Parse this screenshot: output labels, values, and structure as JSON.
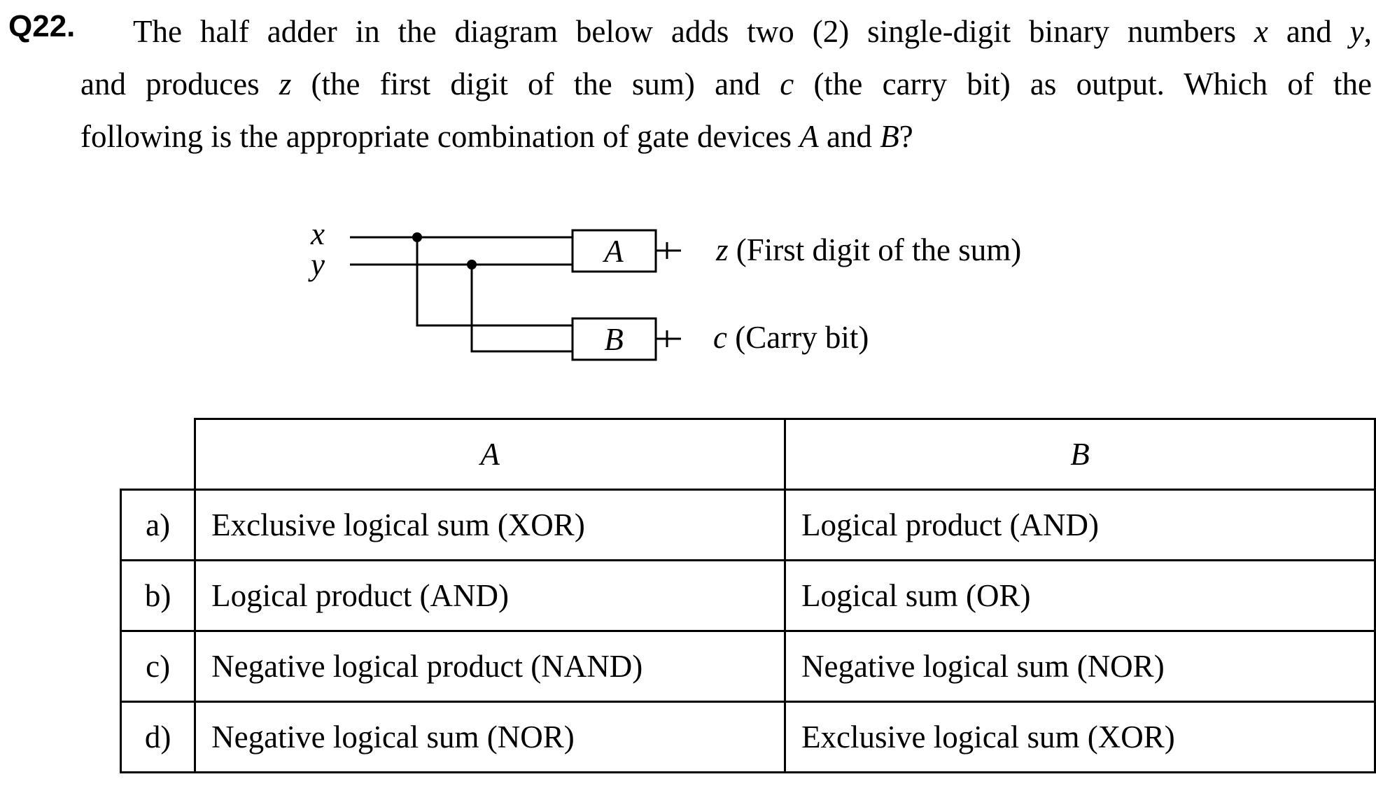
{
  "question": {
    "number": "Q22.",
    "line1": [
      "The half adder in the diagram below adds two (2) single-digit binary numbers ",
      "x",
      " and ",
      "y",
      ","
    ],
    "line2": [
      "and produces ",
      "z",
      " (the first digit of the sum) and ",
      "c",
      " (the carry bit) as output. Which of the"
    ],
    "line3": [
      "following is the appropriate combination of gate devices ",
      "A",
      " and ",
      "B",
      "?"
    ]
  },
  "diagram": {
    "input_x": "x",
    "input_y": "y",
    "gate_a": "A",
    "gate_b": "B",
    "output_z_var": "z",
    "output_z_text": " (First digit of the sum)",
    "output_c_var": "c",
    "output_c_text": " (Carry bit)"
  },
  "table": {
    "headers": {
      "a": "A",
      "b": "B"
    },
    "rows": [
      {
        "letter": "a)",
        "a": "Exclusive logical sum (XOR)",
        "b": "Logical product (AND)"
      },
      {
        "letter": "b)",
        "a": "Logical product (AND)",
        "b": "Logical sum (OR)"
      },
      {
        "letter": "c)",
        "a": "Negative logical product (NAND)",
        "b": "Negative logical sum (NOR)"
      },
      {
        "letter": "d)",
        "a": "Negative logical sum (NOR)",
        "b": "Exclusive logical sum (XOR)"
      }
    ]
  }
}
